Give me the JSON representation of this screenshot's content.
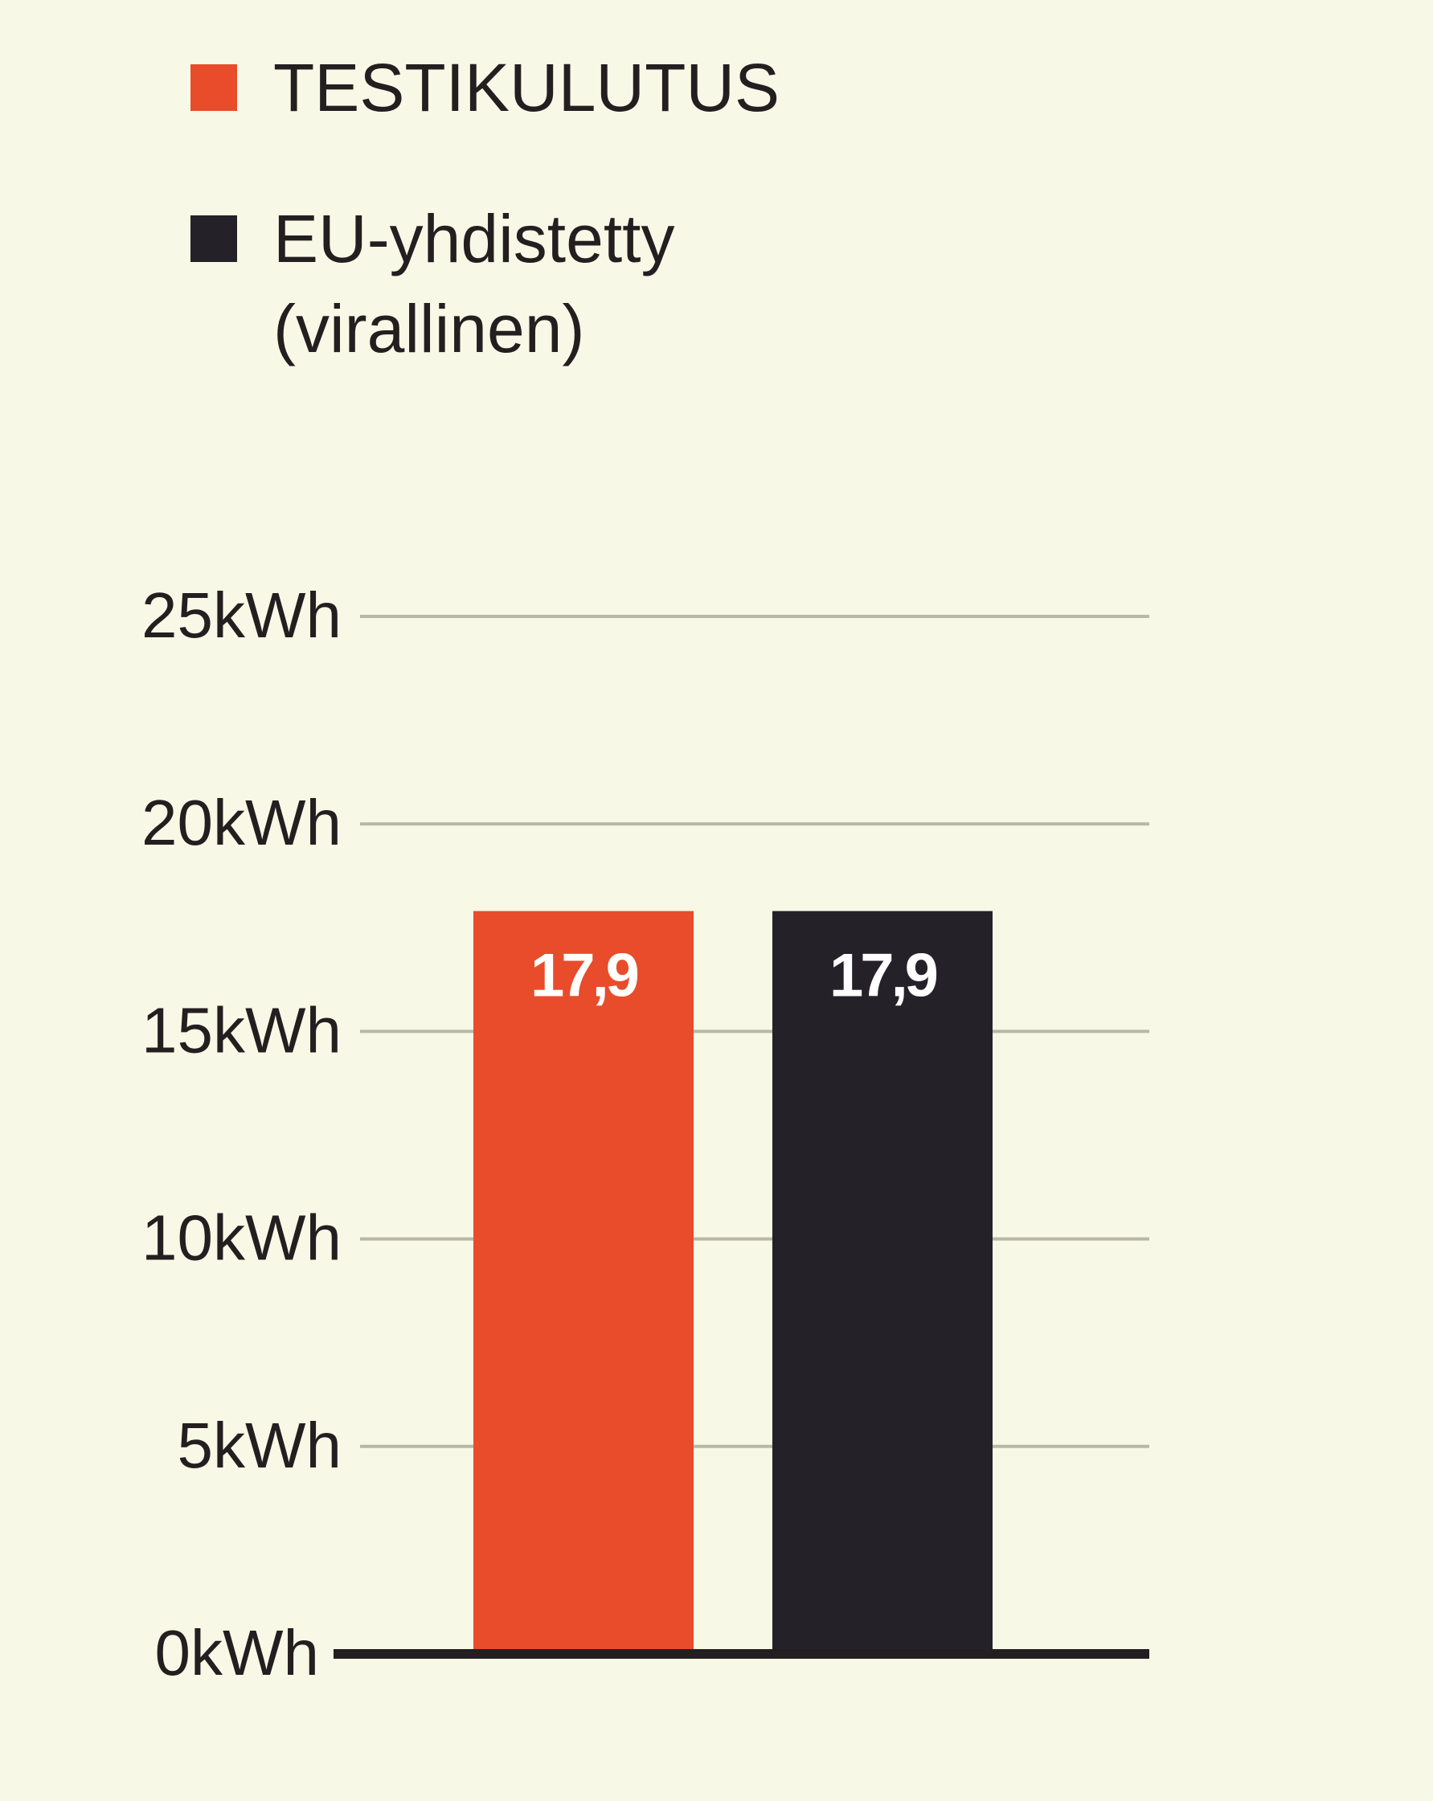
{
  "chart_data": {
    "type": "bar",
    "categories": [
      "TESTIKULUTUS",
      "EU-yhdistetty (virallinen)"
    ],
    "values": [
      17.9,
      17.9
    ],
    "value_labels": [
      "17,9",
      "17,9"
    ],
    "colors": [
      "#e84c2b",
      "#242228"
    ],
    "ylim": [
      0,
      25
    ],
    "yticks": [
      0,
      5,
      10,
      15,
      20,
      25
    ],
    "ytick_labels": [
      "0kWh",
      "5kWh",
      "10kWh",
      "15kWh",
      "20kWh",
      "25kWh"
    ],
    "grid": true,
    "legend": {
      "placement": "top-left",
      "items": [
        {
          "line1": "TESTIKULUTUS",
          "line2": "",
          "color": "#e84c2b"
        },
        {
          "line1": "EU-yhdistetty",
          "line2": "(virallinen)",
          "color": "#242228"
        }
      ]
    }
  }
}
